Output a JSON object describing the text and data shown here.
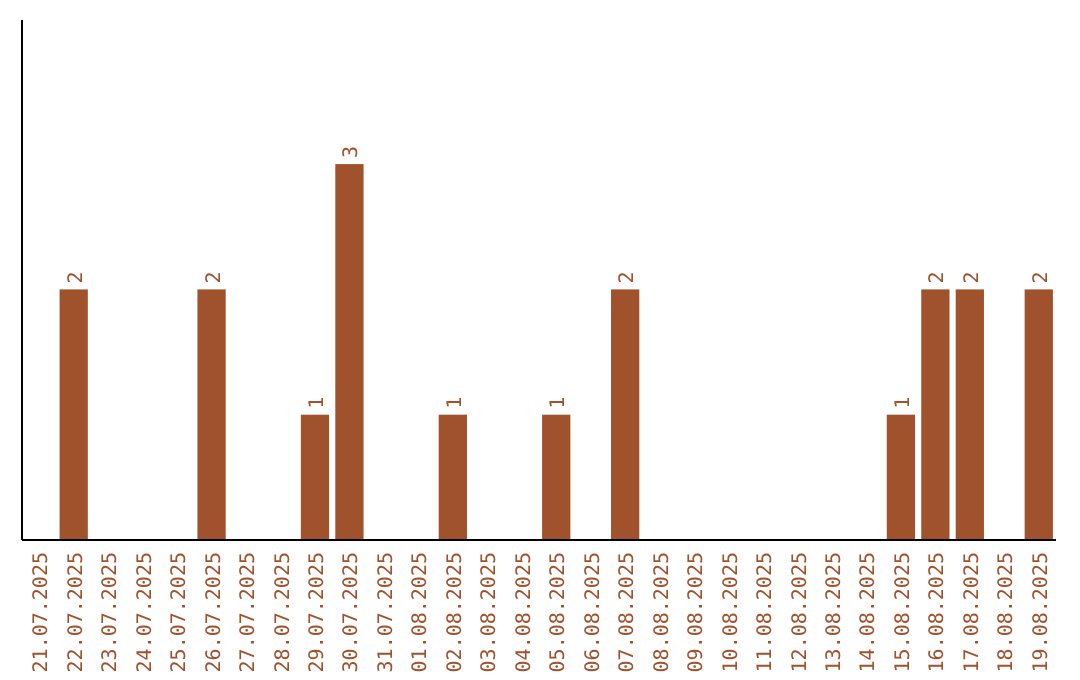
{
  "chart_data": {
    "type": "bar",
    "categories": [
      "21.07.2025",
      "22.07.2025",
      "23.07.2025",
      "24.07.2025",
      "25.07.2025",
      "26.07.2025",
      "27.07.2025",
      "28.07.2025",
      "29.07.2025",
      "30.07.2025",
      "31.07.2025",
      "01.08.2025",
      "02.08.2025",
      "03.08.2025",
      "04.08.2025",
      "05.08.2025",
      "06.08.2025",
      "07.08.2025",
      "08.08.2025",
      "09.08.2025",
      "10.08.2025",
      "11.08.2025",
      "12.08.2025",
      "13.08.2025",
      "14.08.2025",
      "15.08.2025",
      "16.08.2025",
      "17.08.2025",
      "18.08.2025",
      "19.08.2025"
    ],
    "values": [
      0,
      2,
      0,
      0,
      0,
      2,
      0,
      0,
      1,
      3,
      0,
      0,
      1,
      0,
      0,
      1,
      0,
      2,
      0,
      0,
      0,
      0,
      0,
      0,
      0,
      1,
      2,
      2,
      0,
      2
    ],
    "value_labels": [
      null,
      "2",
      null,
      null,
      null,
      "2",
      null,
      null,
      "1",
      "3",
      null,
      null,
      "1",
      null,
      null,
      "1",
      null,
      "2",
      null,
      null,
      null,
      null,
      null,
      null,
      null,
      "1",
      "2",
      "2",
      null,
      "2"
    ],
    "color": "#a0522d",
    "ylim": [
      0,
      4.15
    ]
  }
}
